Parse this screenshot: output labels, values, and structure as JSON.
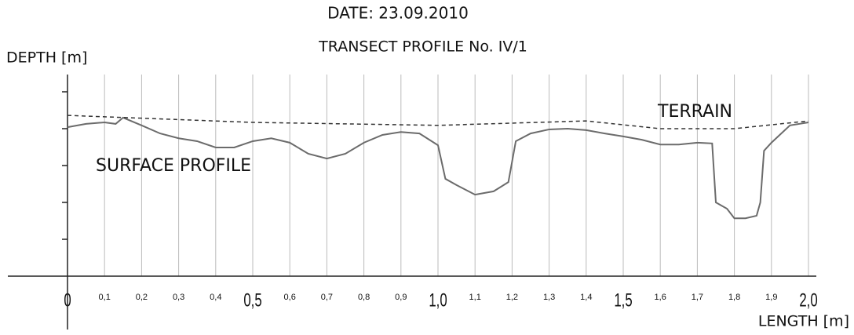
{
  "chart_data": {
    "type": "line",
    "title": "DATE: 23.09.2010",
    "subtitle": "TRANSECT  PROFILE No. IV/1",
    "ylabel": "DEPTH [m]",
    "xlabel": "LENGTH [m]",
    "xlim": [
      0,
      2.0
    ],
    "ylim": [
      0,
      5
    ],
    "yticks": [
      1,
      2,
      3,
      4,
      5
    ],
    "xticks": [
      0,
      {
        "value": 0.1,
        "label": "0,1"
      },
      {
        "value": 0.2,
        "label": "0,2"
      },
      {
        "value": 0.3,
        "label": "0,3"
      },
      {
        "value": 0.4,
        "label": "0,4"
      },
      {
        "value": 0.5,
        "label": "0,5"
      },
      {
        "value": 0.6,
        "label": "0,6"
      },
      {
        "value": 0.7,
        "label": "0,7"
      },
      {
        "value": 0.8,
        "label": "0,8"
      },
      {
        "value": 0.9,
        "label": "0,9"
      },
      {
        "value": 1.0,
        "label": "1,0"
      },
      {
        "value": 1.1,
        "label": "1,1"
      },
      {
        "value": 1.2,
        "label": "1,2"
      },
      {
        "value": 1.3,
        "label": "1,3"
      },
      {
        "value": 1.4,
        "label": "1,4"
      },
      {
        "value": 1.5,
        "label": "1,5"
      },
      {
        "value": 1.6,
        "label": "1,6"
      },
      {
        "value": 1.7,
        "label": "1,7"
      },
      {
        "value": 1.8,
        "label": "1,8"
      },
      {
        "value": 1.9,
        "label": "1,9"
      },
      {
        "value": 2.0,
        "label": "2,0"
      }
    ],
    "grid": true,
    "series": [
      {
        "name": "SURFACE  PROFILE",
        "color": "#6b6b6b",
        "dashed": false,
        "x": [
          0,
          0.05,
          0.1,
          0.13,
          0.15,
          0.2,
          0.25,
          0.3,
          0.35,
          0.4,
          0.45,
          0.5,
          0.55,
          0.6,
          0.65,
          0.7,
          0.75,
          0.8,
          0.85,
          0.9,
          0.95,
          1.0,
          1.02,
          1.05,
          1.1,
          1.15,
          1.19,
          1.21,
          1.25,
          1.3,
          1.35,
          1.4,
          1.45,
          1.5,
          1.55,
          1.6,
          1.65,
          1.7,
          1.74,
          1.75,
          1.78,
          1.8,
          1.83,
          1.86,
          1.87,
          1.88,
          1.9,
          1.95,
          2.0
        ],
        "values": [
          4.04,
          4.13,
          4.17,
          4.13,
          4.3,
          4.09,
          3.87,
          3.74,
          3.66,
          3.49,
          3.49,
          3.66,
          3.74,
          3.62,
          3.32,
          3.19,
          3.32,
          3.62,
          3.83,
          3.91,
          3.87,
          3.55,
          2.64,
          2.47,
          2.21,
          2.3,
          2.55,
          3.66,
          3.87,
          3.98,
          4.0,
          3.96,
          3.87,
          3.79,
          3.7,
          3.57,
          3.57,
          3.62,
          3.6,
          2.0,
          1.83,
          1.57,
          1.57,
          1.64,
          2.0,
          3.4,
          3.62,
          4.09,
          4.17
        ]
      },
      {
        "name": "TERRAIN",
        "color": "#333333",
        "dashed": true,
        "x": [
          0,
          0.5,
          1.0,
          1.4,
          1.6,
          1.8,
          2.0
        ],
        "values": [
          4.36,
          4.17,
          4.09,
          4.21,
          4.0,
          4.0,
          4.21
        ]
      }
    ]
  }
}
